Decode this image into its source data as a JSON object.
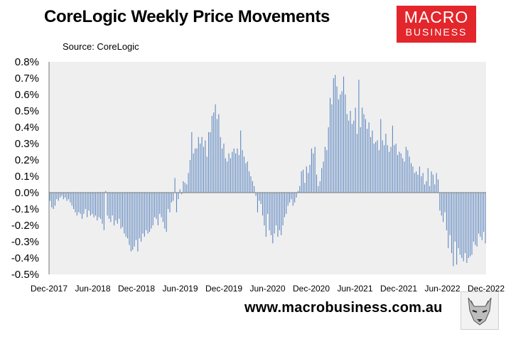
{
  "header": {
    "title": "CoreLogic Weekly Price Movements",
    "source": "Source: CoreLogic"
  },
  "logo": {
    "line1": "MACRO",
    "line2": "BUSINESS",
    "color": "#e3262b"
  },
  "footer": {
    "website": "www.macrobusiness.com.au"
  },
  "chart_data": {
    "type": "bar",
    "bar_color": "#5b85bf",
    "plot_background": "#efefef",
    "grid": false,
    "x_start": "Dec-2017",
    "x_end": "Dec-2022",
    "ylim": [
      -0.5,
      0.8
    ],
    "yticks": [
      "0.8%",
      "0.7%",
      "0.6%",
      "0.5%",
      "0.4%",
      "0.3%",
      "0.2%",
      "0.1%",
      "0.0%",
      "-0.1%",
      "-0.2%",
      "-0.3%",
      "-0.4%",
      "-0.5%"
    ],
    "xticks": [
      "Dec-2017",
      "Jun-2018",
      "Dec-2018",
      "Jun-2019",
      "Dec-2019",
      "Jun-2020",
      "Dec-2020",
      "Jun-2021",
      "Dec-2021",
      "Jun-2022",
      "Dec-2022"
    ],
    "xlabel": "",
    "ylabel": "",
    "values": [
      -0.05,
      -0.09,
      -0.1,
      -0.08,
      -0.04,
      -0.05,
      -0.03,
      -0.02,
      -0.04,
      -0.03,
      -0.05,
      -0.04,
      -0.06,
      -0.08,
      -0.1,
      -0.12,
      -0.14,
      -0.12,
      -0.13,
      -0.16,
      -0.13,
      -0.1,
      -0.15,
      -0.11,
      -0.14,
      -0.13,
      -0.15,
      -0.14,
      -0.17,
      -0.15,
      -0.16,
      -0.19,
      -0.23,
      0.01,
      -0.14,
      -0.16,
      -0.18,
      -0.14,
      -0.2,
      -0.17,
      -0.19,
      -0.16,
      -0.22,
      -0.21,
      -0.25,
      -0.27,
      -0.28,
      -0.32,
      -0.36,
      -0.35,
      -0.33,
      -0.29,
      -0.36,
      -0.28,
      -0.3,
      -0.25,
      -0.27,
      -0.23,
      -0.25,
      -0.24,
      -0.22,
      -0.2,
      -0.15,
      -0.16,
      -0.2,
      -0.13,
      -0.15,
      -0.18,
      -0.22,
      -0.24,
      -0.1,
      -0.12,
      -0.06,
      -0.05,
      0.09,
      -0.12,
      -0.04,
      0.02,
      -0.01,
      0.07,
      0.06,
      0.05,
      0.12,
      0.2,
      0.37,
      0.24,
      0.27,
      0.27,
      0.34,
      0.3,
      0.34,
      0.28,
      0.32,
      0.22,
      0.37,
      0.37,
      0.47,
      0.49,
      0.54,
      0.45,
      0.48,
      0.34,
      0.27,
      0.3,
      0.21,
      0.19,
      0.24,
      0.21,
      0.25,
      0.27,
      0.24,
      0.27,
      0.23,
      0.38,
      0.26,
      0.22,
      0.18,
      0.19,
      0.13,
      0.1,
      0.07,
      0.04,
      -0.02,
      -0.12,
      -0.05,
      -0.07,
      -0.14,
      -0.2,
      -0.27,
      -0.13,
      -0.23,
      -0.26,
      -0.31,
      -0.25,
      -0.2,
      -0.27,
      -0.23,
      -0.26,
      -0.2,
      -0.15,
      -0.13,
      -0.08,
      -0.06,
      -0.04,
      -0.08,
      -0.06,
      -0.03,
      0.01,
      0.04,
      0.13,
      0.14,
      0.06,
      0.16,
      0.12,
      0.17,
      0.27,
      0.24,
      0.28,
      0.11,
      0.04,
      0.07,
      0.15,
      0.19,
      0.28,
      0.26,
      0.4,
      0.58,
      0.54,
      0.7,
      0.72,
      0.65,
      0.57,
      0.6,
      0.62,
      0.71,
      0.6,
      0.48,
      0.44,
      0.5,
      0.42,
      0.44,
      0.52,
      0.36,
      0.69,
      0.4,
      0.52,
      0.48,
      0.45,
      0.39,
      0.43,
      0.34,
      0.38,
      0.3,
      0.31,
      0.32,
      0.26,
      0.45,
      0.32,
      0.29,
      0.36,
      0.29,
      0.25,
      0.28,
      0.41,
      0.29,
      0.3,
      0.23,
      0.25,
      0.24,
      0.21,
      0.19,
      0.28,
      0.26,
      0.22,
      0.18,
      0.16,
      0.12,
      0.13,
      0.11,
      0.16,
      0.1,
      0.12,
      0.05,
      0.07,
      0.15,
      0.04,
      0.13,
      0.11,
      0.05,
      0.12,
      0.08,
      -0.11,
      -0.14,
      -0.18,
      -0.12,
      -0.23,
      -0.34,
      -0.26,
      -0.37,
      -0.45,
      -0.3,
      -0.44,
      -0.34,
      -0.38,
      -0.4,
      -0.42,
      -0.37,
      -0.43,
      -0.4,
      -0.39,
      -0.38,
      -0.3,
      -0.32,
      -0.33,
      -0.25,
      -0.27,
      -0.29,
      -0.24,
      -0.31
    ]
  }
}
